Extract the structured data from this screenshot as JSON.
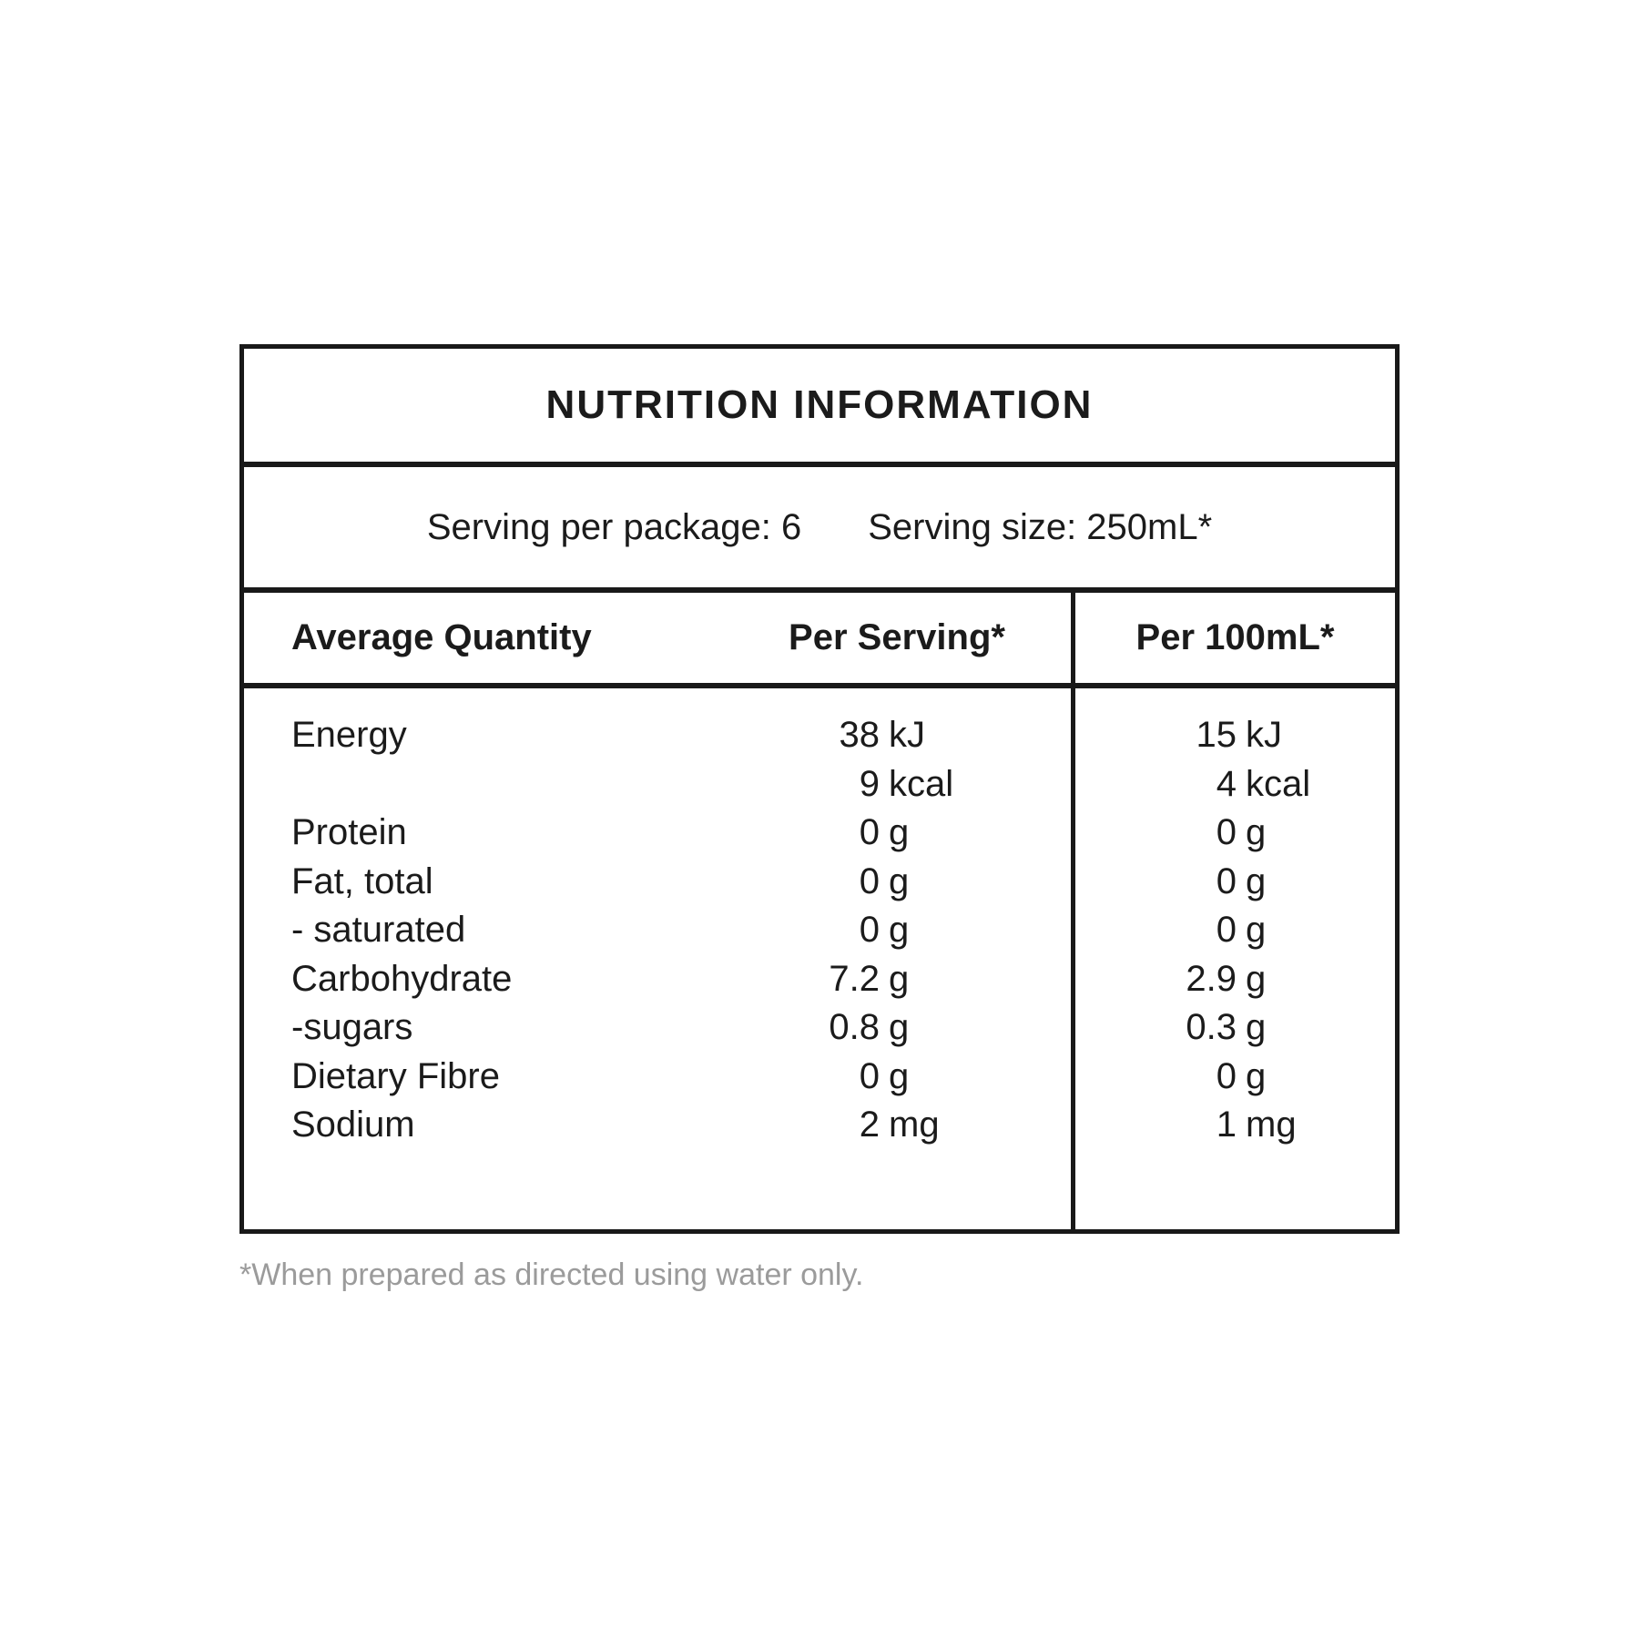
{
  "title": "NUTRITION INFORMATION",
  "serving_info": {
    "per_package": "Serving per package: 6",
    "size": "Serving size: 250mL*"
  },
  "columns": {
    "quantity": "Average Quantity",
    "per_serving": "Per Serving*",
    "per_100ml": "Per 100mL*"
  },
  "rows": [
    {
      "label": "Energy",
      "serving_num": "38",
      "serving_unit": "kJ",
      "per100_num": "15",
      "per100_unit": "kJ"
    },
    {
      "label": "",
      "serving_num": "9",
      "serving_unit": "kcal",
      "per100_num": "4",
      "per100_unit": "kcal"
    },
    {
      "label": "Protein",
      "serving_num": "0",
      "serving_unit": "g",
      "per100_num": "0",
      "per100_unit": "g"
    },
    {
      "label": "Fat, total",
      "serving_num": "0",
      "serving_unit": "g",
      "per100_num": "0",
      "per100_unit": "g"
    },
    {
      "label": "- saturated",
      "serving_num": "0",
      "serving_unit": "g",
      "per100_num": "0",
      "per100_unit": "g"
    },
    {
      "label": "Carbohydrate",
      "serving_num": "7.2",
      "serving_unit": "g",
      "per100_num": "2.9",
      "per100_unit": "g"
    },
    {
      "label": "-sugars",
      "serving_num": "0.8",
      "serving_unit": "g",
      "per100_num": "0.3",
      "per100_unit": "g"
    },
    {
      "label": "Dietary Fibre",
      "serving_num": "0",
      "serving_unit": "g",
      "per100_num": "0",
      "per100_unit": "g"
    },
    {
      "label": "Sodium",
      "serving_num": "2",
      "serving_unit": "mg",
      "per100_num": "1",
      "per100_unit": "mg"
    }
  ],
  "footnote": "*When prepared as directed using water only.",
  "colors": {
    "background": "#ffffff",
    "border": "#191919",
    "text": "#1b1b1b",
    "footnote_text": "#9b9b9b"
  }
}
